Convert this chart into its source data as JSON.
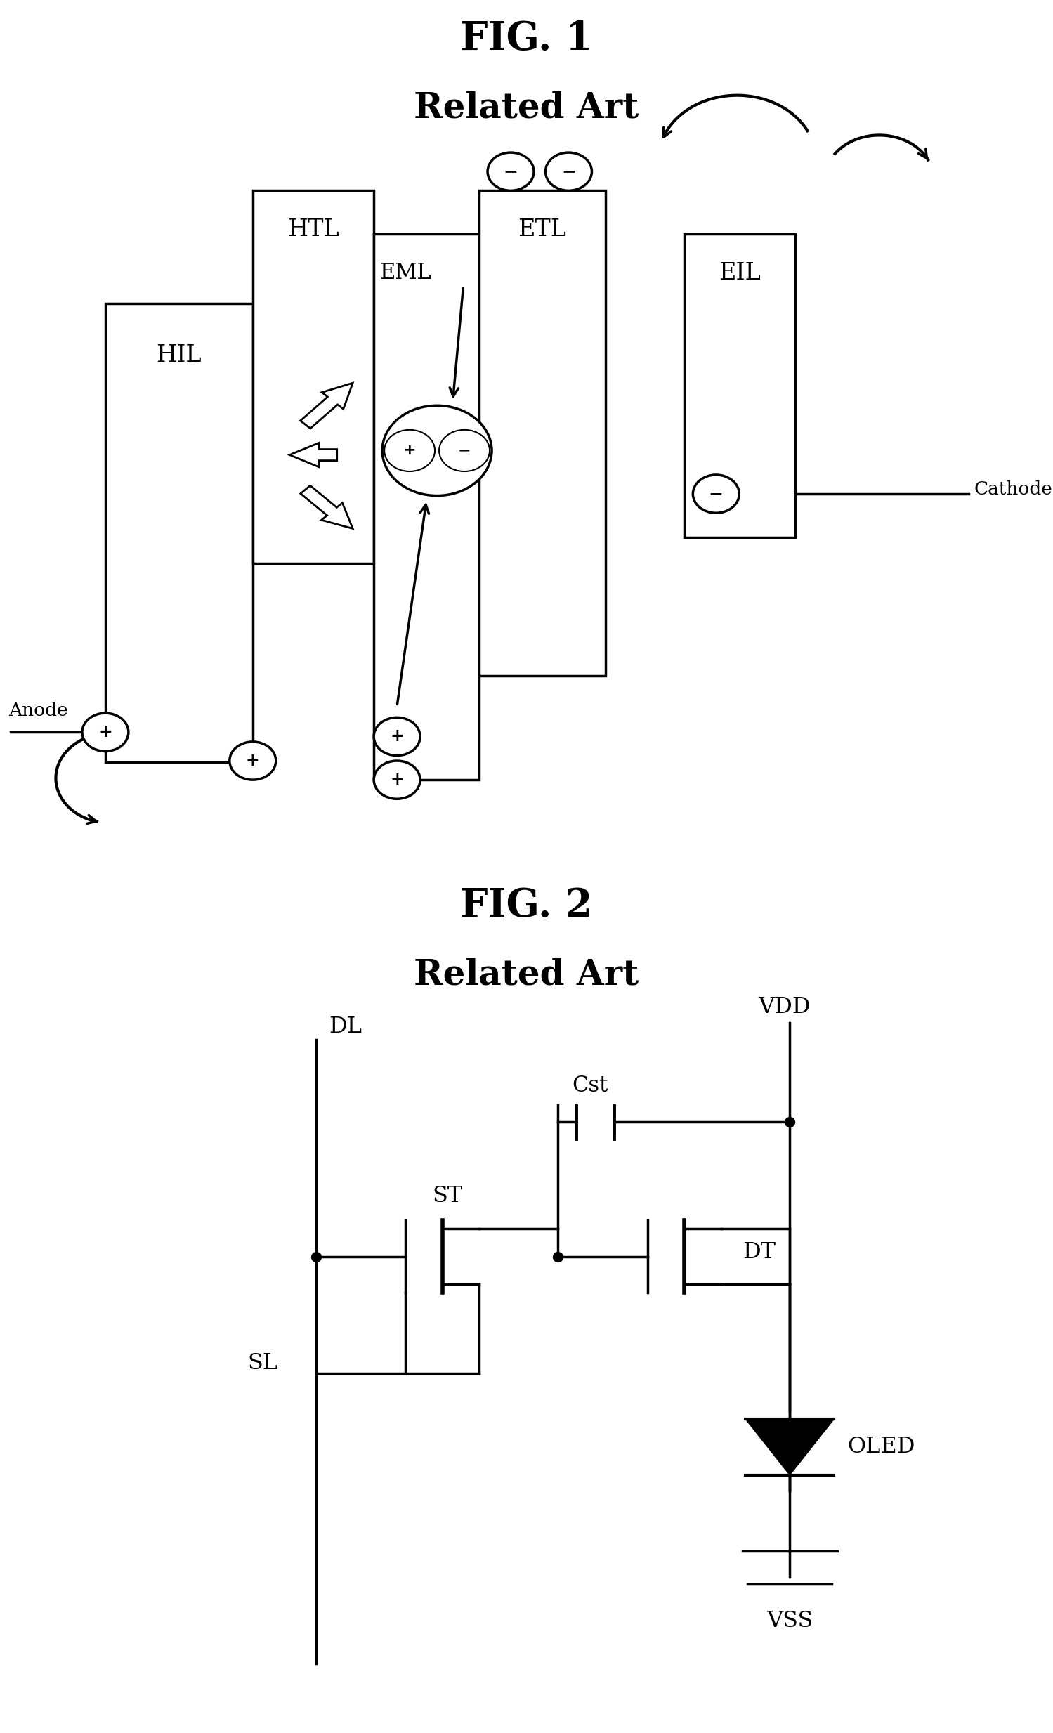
{
  "fig1_title": "FIG. 1",
  "fig1_subtitle": "Related Art",
  "fig2_title": "FIG. 2",
  "fig2_subtitle": "Related Art",
  "bg_color": "#ffffff",
  "line_color": "#000000",
  "lw": 2.5
}
